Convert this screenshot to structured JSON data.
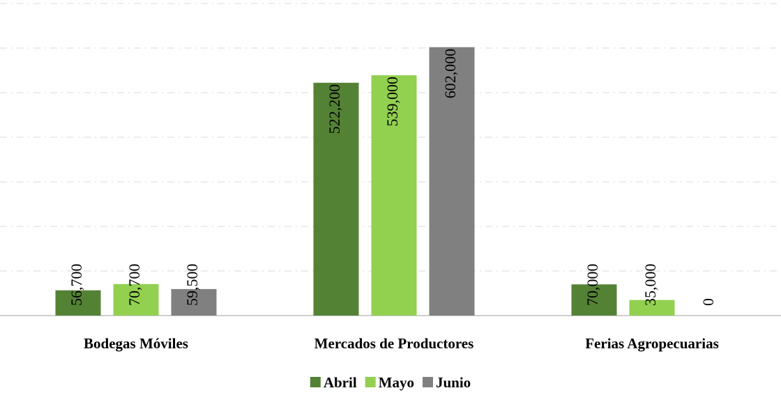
{
  "chart_data": {
    "type": "bar",
    "categories": [
      "Bodegas Móviles",
      "Mercados de Productores",
      "Ferias Agropecuarias"
    ],
    "series": [
      {
        "name": "Abril",
        "color": "#548235",
        "values": [
          56700,
          522200,
          70000
        ],
        "value_labels": [
          "56,700",
          "522,200",
          "70,000"
        ]
      },
      {
        "name": "Mayo",
        "color": "#92d050",
        "values": [
          70700,
          539000,
          35000
        ],
        "value_labels": [
          "70,700",
          "539,000",
          "35,000"
        ]
      },
      {
        "name": "Junio",
        "color": "#808080",
        "values": [
          59500,
          602000,
          0
        ],
        "value_labels": [
          "59,500",
          "602,000",
          "0"
        ]
      }
    ],
    "ylim": [
      0,
      700000
    ],
    "yticks": [
      0,
      100000,
      200000,
      300000,
      400000,
      500000,
      600000,
      700000
    ],
    "grid": true,
    "legend": "bottom"
  }
}
